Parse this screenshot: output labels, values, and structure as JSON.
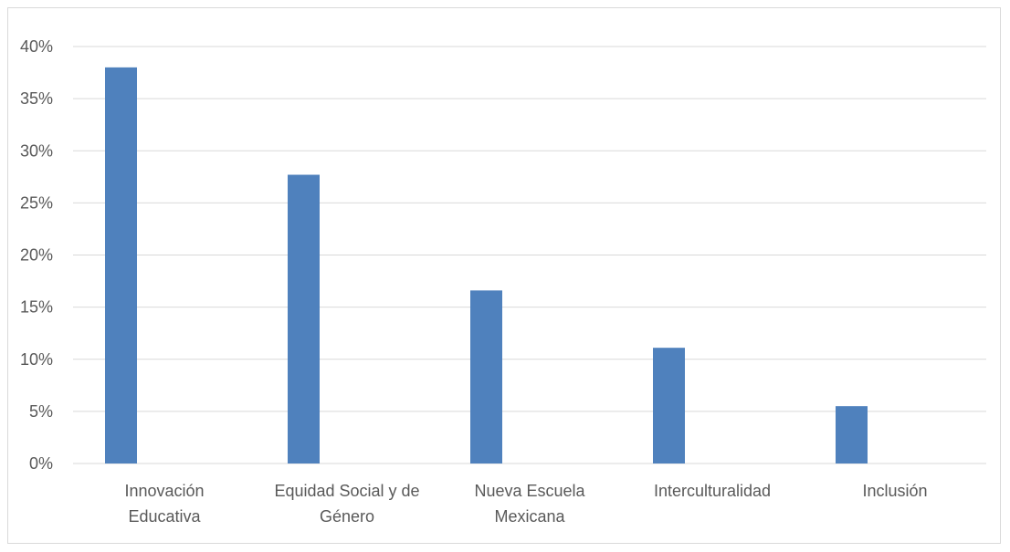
{
  "chart_data": {
    "type": "bar",
    "title": "",
    "xlabel": "",
    "ylabel": "",
    "categories": [
      [
        "Innovación",
        "Educativa"
      ],
      [
        "Equidad Social y de",
        "Género"
      ],
      [
        "Nueva Escuela",
        "Mexicana"
      ],
      [
        "Interculturalidad"
      ],
      [
        "Inclusión"
      ]
    ],
    "values": [
      38.0,
      27.7,
      16.6,
      11.1,
      5.5
    ],
    "ylim": [
      0,
      40
    ],
    "yticks": [
      0,
      5,
      10,
      15,
      20,
      25,
      30,
      35,
      40
    ],
    "ytick_labels": [
      "0%",
      "5%",
      "10%",
      "15%",
      "20%",
      "25%",
      "30%",
      "35%",
      "40%"
    ],
    "bar_color": "#4f81bd",
    "grid": true,
    "legend": "none"
  }
}
